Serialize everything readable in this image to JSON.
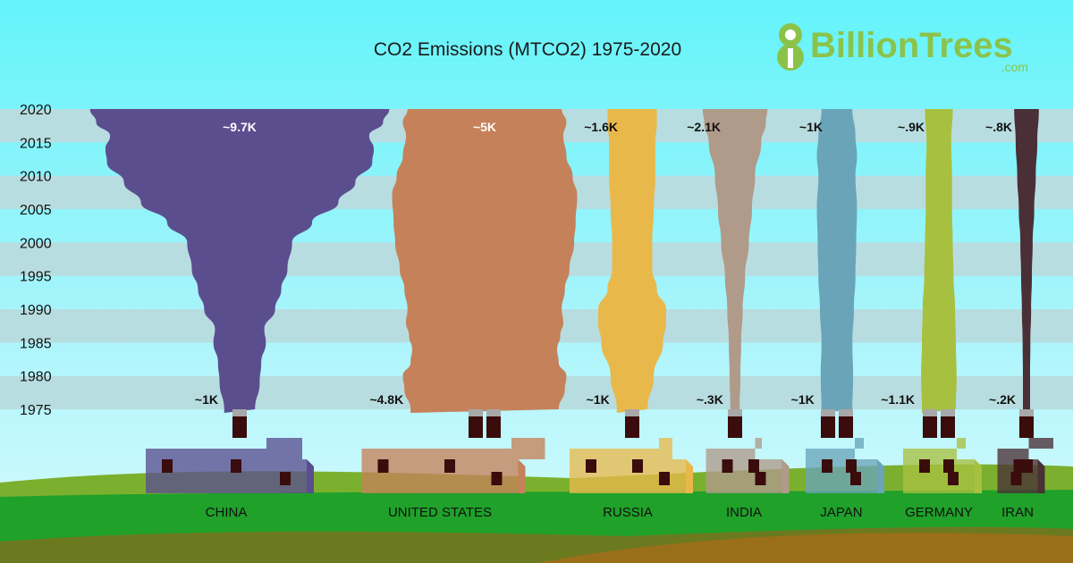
{
  "title": "CO2 Emissions (MTCO2) 1975-2020",
  "logo": {
    "digit": "8",
    "name": "BillionTrees",
    "domain": ".com",
    "color": "#8bc34a"
  },
  "chart_data": {
    "type": "area",
    "title": "CO2 Emissions (MTCO2) 1975-2020",
    "years": [
      "2020",
      "2015",
      "2010",
      "2005",
      "2000",
      "1995",
      "1990",
      "1985",
      "1980",
      "1975"
    ],
    "series": [
      {
        "name": "CHINA",
        "color": "#5b4e8f",
        "start_label": "~1K",
        "end_label": "~9.7K",
        "start_value": 1000,
        "end_value": 9700,
        "profile": [
          [
            1975,
            1000
          ],
          [
            1979,
            1300
          ],
          [
            1982,
            1400
          ],
          [
            1985,
            1700
          ],
          [
            1987,
            1600
          ],
          [
            1990,
            2300
          ],
          [
            1993,
            2700
          ],
          [
            1996,
            3100
          ],
          [
            2000,
            3400
          ],
          [
            2003,
            4700
          ],
          [
            2006,
            6400
          ],
          [
            2009,
            7500
          ],
          [
            2012,
            8600
          ],
          [
            2014,
            8700
          ],
          [
            2016,
            8400
          ],
          [
            2018,
            9300
          ],
          [
            2020,
            9700
          ]
        ]
      },
      {
        "name": "UNITED STATES",
        "color": "#c5815a",
        "start_label": "~4.8K",
        "end_label": "~5K",
        "start_value": 4800,
        "end_value": 5000,
        "profile": [
          [
            1975,
            4800
          ],
          [
            1978,
            5200
          ],
          [
            1980,
            5300
          ],
          [
            1982,
            4800
          ],
          [
            1984,
            4700
          ],
          [
            1986,
            4900
          ],
          [
            1988,
            5100
          ],
          [
            1990,
            5000
          ],
          [
            1993,
            5200
          ],
          [
            1996,
            5500
          ],
          [
            2000,
            5800
          ],
          [
            2003,
            5900
          ],
          [
            2007,
            6000
          ],
          [
            2010,
            5700
          ],
          [
            2013,
            5300
          ],
          [
            2016,
            5100
          ],
          [
            2018,
            5300
          ],
          [
            2020,
            5000
          ]
        ]
      },
      {
        "name": "RUSSIA",
        "color": "#e8b84b",
        "start_label": "~1K",
        "end_label": "~1.6K",
        "start_value": 1000,
        "end_value": 1600,
        "profile": [
          [
            1975,
            1000
          ],
          [
            1980,
            1400
          ],
          [
            1985,
            2000
          ],
          [
            1988,
            2200
          ],
          [
            1990,
            2200
          ],
          [
            1993,
            1600
          ],
          [
            1996,
            1300
          ],
          [
            2000,
            1300
          ],
          [
            2005,
            1400
          ],
          [
            2010,
            1500
          ],
          [
            2015,
            1500
          ],
          [
            2018,
            1600
          ],
          [
            2020,
            1600
          ]
        ]
      },
      {
        "name": "INDIA",
        "color": "#b09a8a",
        "start_label": "~.3K",
        "end_label": "~2.1K",
        "start_value": 300,
        "end_value": 2100,
        "profile": [
          [
            1975,
            300
          ],
          [
            1980,
            350
          ],
          [
            1985,
            400
          ],
          [
            1990,
            500
          ],
          [
            1995,
            650
          ],
          [
            2000,
            900
          ],
          [
            2005,
            1100
          ],
          [
            2010,
            1300
          ],
          [
            2015,
            1700
          ],
          [
            2018,
            2000
          ],
          [
            2020,
            2100
          ]
        ]
      },
      {
        "name": "JAPAN",
        "color": "#6aa4b8",
        "start_label": "~1K",
        "end_label": "~1K",
        "start_value": 1000,
        "end_value": 1000,
        "profile": [
          [
            1975,
            1000
          ],
          [
            1980,
            1050
          ],
          [
            1985,
            1000
          ],
          [
            1990,
            1100
          ],
          [
            1995,
            1200
          ],
          [
            2000,
            1250
          ],
          [
            2005,
            1300
          ],
          [
            2010,
            1200
          ],
          [
            2013,
            1300
          ],
          [
            2016,
            1200
          ],
          [
            2020,
            1000
          ]
        ]
      },
      {
        "name": "GERMANY",
        "color": "#a8c040",
        "start_label": "~1.1K",
        "end_label": "~.9K",
        "start_value": 1100,
        "end_value": 900,
        "profile": [
          [
            1975,
            1100
          ],
          [
            1980,
            1150
          ],
          [
            1985,
            1100
          ],
          [
            1990,
            1050
          ],
          [
            1995,
            950
          ],
          [
            2000,
            900
          ],
          [
            2005,
            850
          ],
          [
            2010,
            850
          ],
          [
            2015,
            800
          ],
          [
            2020,
            900
          ]
        ]
      },
      {
        "name": "IRAN",
        "color": "#4a2f36",
        "start_label": "~.2K",
        "end_label": "~.8K",
        "start_value": 200,
        "end_value": 800,
        "profile": [
          [
            1975,
            200
          ],
          [
            1980,
            200
          ],
          [
            1985,
            250
          ],
          [
            1990,
            300
          ],
          [
            1995,
            350
          ],
          [
            2000,
            400
          ],
          [
            2005,
            500
          ],
          [
            2010,
            600
          ],
          [
            2015,
            700
          ],
          [
            2020,
            800
          ]
        ]
      }
    ]
  }
}
